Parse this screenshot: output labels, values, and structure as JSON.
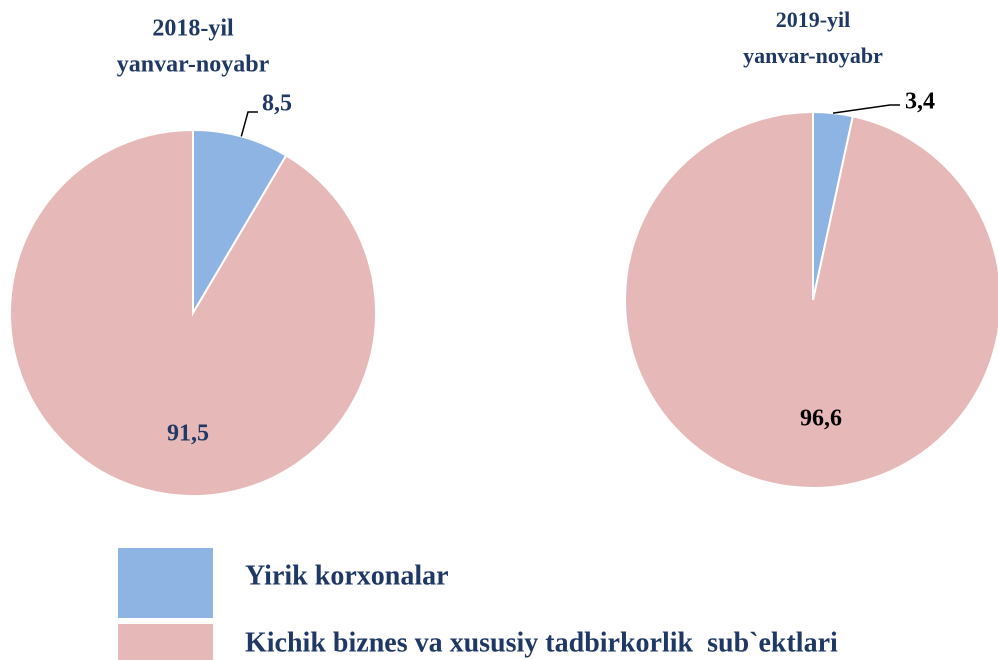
{
  "chart_data": [
    {
      "type": "pie",
      "title": "2018-yil",
      "subtitle": "yanvar-noyabr",
      "values": [
        8.5,
        91.5
      ],
      "value_labels": [
        "8,5",
        "91,5"
      ]
    },
    {
      "type": "pie",
      "title": "2019-yil",
      "subtitle": "yanvar-noyabr",
      "values": [
        3.4,
        96.6
      ],
      "value_labels": [
        "3,4",
        "96,6"
      ]
    }
  ],
  "legend": {
    "categories": [
      "Yirik korxonalar",
      "Kichik biznes va xususiy tadbirkorlik  sub`ektlari"
    ],
    "colors": [
      "#8eb4e3",
      "#e6b9b8"
    ]
  }
}
